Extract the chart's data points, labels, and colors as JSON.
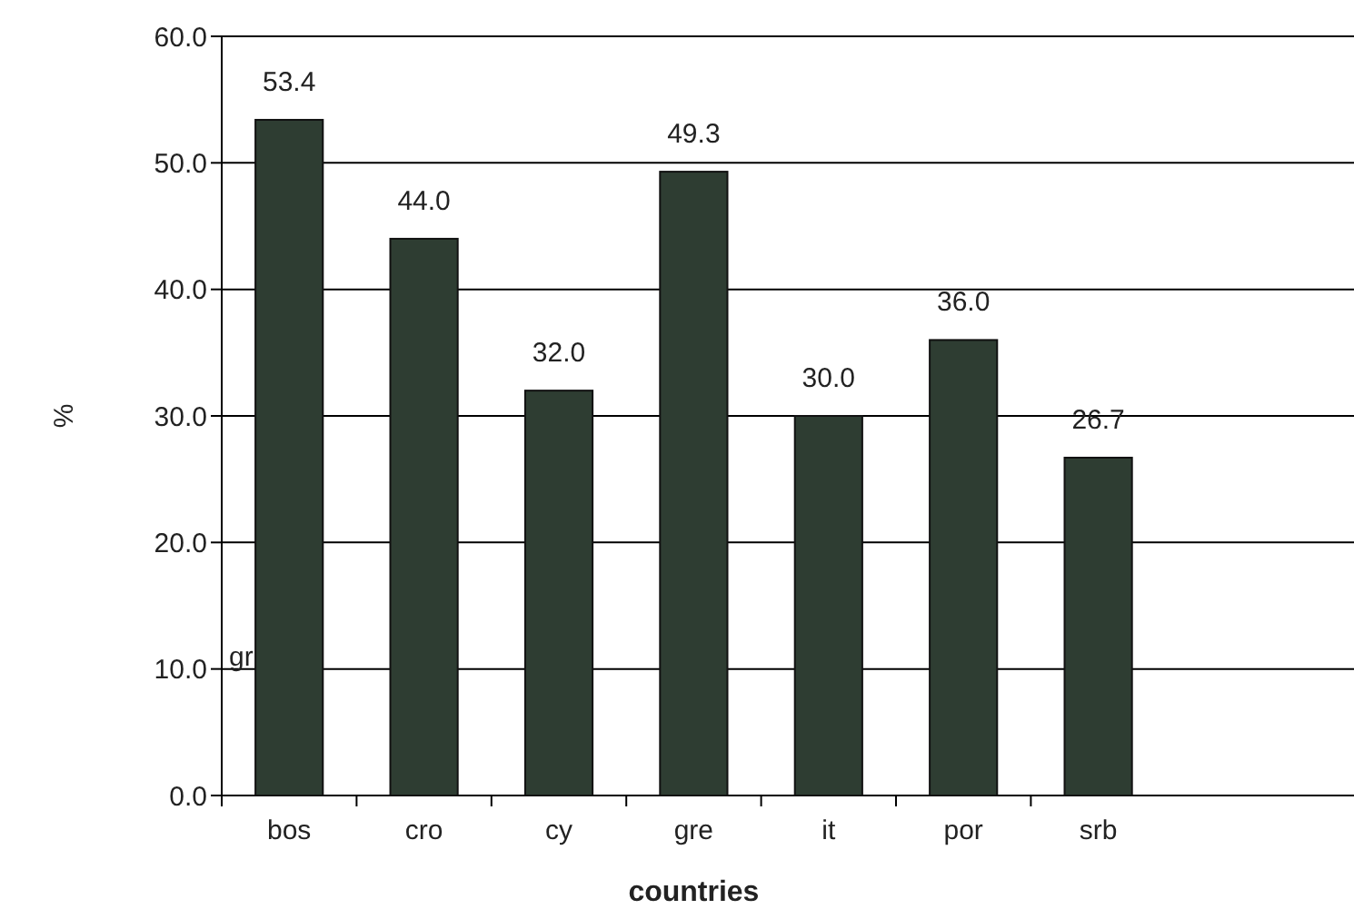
{
  "chart_data": {
    "type": "bar",
    "xlabel": "countries",
    "ylabel": "%",
    "categories": [
      "bos",
      "cro",
      "cy",
      "gre",
      "it",
      "por",
      "srb"
    ],
    "values": [
      53.4,
      44.0,
      32.0,
      49.3,
      30.0,
      36.0,
      26.7
    ],
    "value_labels": [
      "53.4",
      "44.0",
      "32.0",
      "49.3",
      "30.0",
      "36.0",
      "26.7"
    ],
    "color": "#2e3d32",
    "ylim": [
      0,
      60
    ],
    "yticks": [
      {
        "value": 0,
        "label": "0.0"
      },
      {
        "value": 10,
        "label": "10.0"
      },
      {
        "value": 20,
        "label": "20.0"
      },
      {
        "value": 30,
        "label": "30.0"
      },
      {
        "value": 40,
        "label": "40.0"
      },
      {
        "value": 50,
        "label": "50.0"
      },
      {
        "value": 60,
        "label": "60.0"
      }
    ],
    "grid": "y",
    "annotations": [
      "gr"
    ]
  }
}
